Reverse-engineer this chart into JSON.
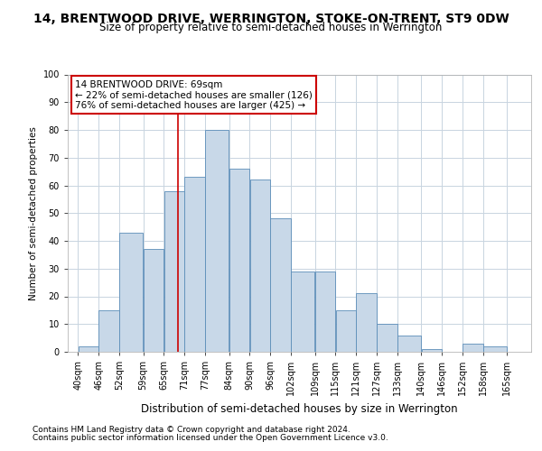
{
  "title1": "14, BRENTWOOD DRIVE, WERRINGTON, STOKE-ON-TRENT, ST9 0DW",
  "title2": "Size of property relative to semi-detached houses in Werrington",
  "xlabel": "Distribution of semi-detached houses by size in Werrington",
  "ylabel": "Number of semi-detached properties",
  "footer1": "Contains HM Land Registry data © Crown copyright and database right 2024.",
  "footer2": "Contains public sector information licensed under the Open Government Licence v3.0.",
  "annotation_line1": "14 BRENTWOOD DRIVE: 69sqm",
  "annotation_line2": "← 22% of semi-detached houses are smaller (126)",
  "annotation_line3": "76% of semi-detached houses are larger (425) →",
  "bar_left_edges": [
    40,
    46,
    52,
    59,
    65,
    71,
    77,
    84,
    90,
    96,
    102,
    109,
    115,
    121,
    127,
    133,
    140,
    146,
    152,
    158
  ],
  "bar_widths": [
    6,
    6,
    7,
    6,
    6,
    6,
    7,
    6,
    6,
    6,
    7,
    6,
    6,
    6,
    6,
    7,
    6,
    6,
    6,
    7
  ],
  "bar_heights": [
    2,
    15,
    43,
    37,
    58,
    63,
    80,
    66,
    62,
    48,
    29,
    29,
    15,
    21,
    10,
    6,
    1,
    0,
    3,
    2
  ],
  "tick_labels": [
    "40sqm",
    "46sqm",
    "52sqm",
    "59sqm",
    "65sqm",
    "71sqm",
    "77sqm",
    "84sqm",
    "90sqm",
    "96sqm",
    "102sqm",
    "109sqm",
    "115sqm",
    "121sqm",
    "127sqm",
    "133sqm",
    "140sqm",
    "146sqm",
    "152sqm",
    "158sqm",
    "165sqm"
  ],
  "bar_color": "#c8d8e8",
  "bar_edge_color": "#5b8db8",
  "vline_x": 69,
  "vline_color": "#cc0000",
  "annotation_box_color": "#cc0000",
  "grid_color": "#c8d4e0",
  "background_color": "#ffffff",
  "ylim": [
    0,
    100
  ],
  "yticks": [
    0,
    10,
    20,
    30,
    40,
    50,
    60,
    70,
    80,
    90,
    100
  ],
  "title1_fontsize": 10.0,
  "title2_fontsize": 8.5,
  "xlabel_fontsize": 8.5,
  "ylabel_fontsize": 7.5,
  "tick_fontsize": 7.0,
  "footer_fontsize": 6.5,
  "annotation_fontsize": 7.5
}
